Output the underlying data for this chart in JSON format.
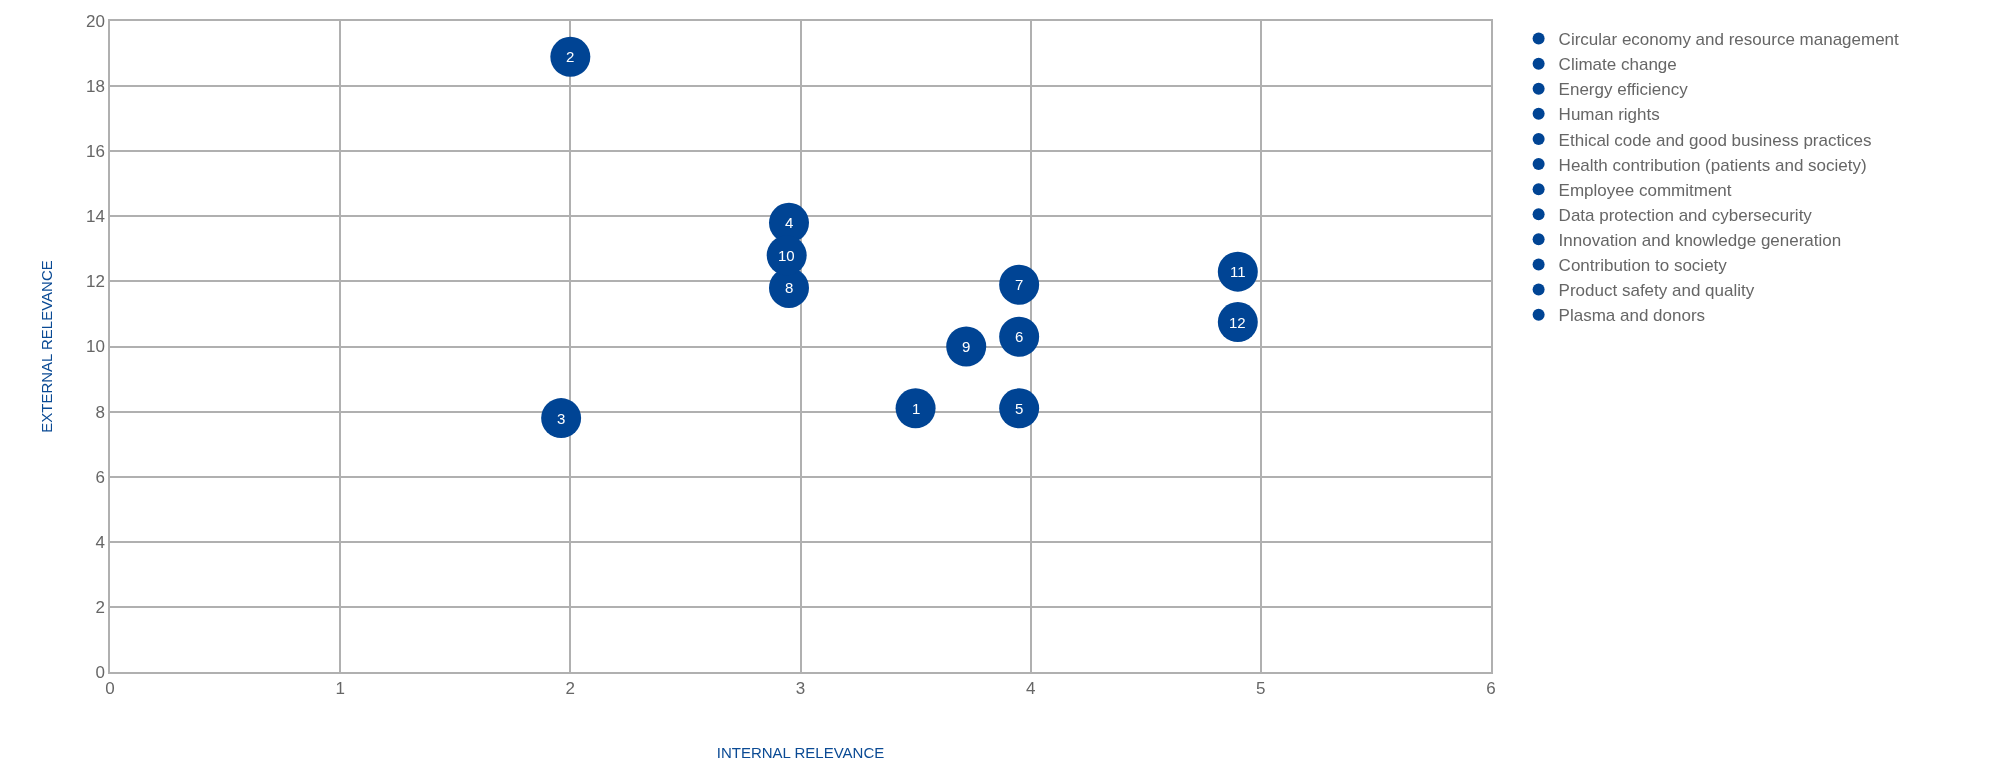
{
  "chart_data": {
    "type": "scatter",
    "xlabel": "INTERNAL RELEVANCE",
    "ylabel": "EXTERNAL RELEVANCE",
    "xlim": [
      0,
      6
    ],
    "xticks": [
      0,
      1,
      2,
      3,
      4,
      5,
      6
    ],
    "ylim": [
      0,
      20
    ],
    "yticks": [
      0,
      2,
      4,
      6,
      8,
      10,
      12,
      14,
      16,
      18,
      20
    ],
    "grid": true,
    "legend": "right",
    "marker": "circle",
    "series": [
      {
        "name": "Circular economy and resource management",
        "color": "#004494",
        "x": [
          3.5
        ],
        "values": [
          8.1
        ]
      },
      {
        "name": "Climate change",
        "color": "#004494",
        "x": [
          2.0
        ],
        "values": [
          18.9
        ]
      },
      {
        "name": "Energy efficiency",
        "color": "#004494",
        "x": [
          1.96
        ],
        "values": [
          7.8
        ]
      },
      {
        "name": "Human rights",
        "color": "#004494",
        "x": [
          2.95
        ],
        "values": [
          13.8
        ]
      },
      {
        "name": "Ethical code and good business practices",
        "color": "#004494",
        "x": [
          3.95
        ],
        "values": [
          8.1
        ]
      },
      {
        "name": "Health contribution (patients and society)",
        "color": "#004494",
        "x": [
          3.95
        ],
        "values": [
          10.3
        ]
      },
      {
        "name": "Employee commitment",
        "color": "#004494",
        "x": [
          3.95
        ],
        "values": [
          11.9
        ]
      },
      {
        "name": "Data protection and cybersecurity",
        "color": "#004494",
        "x": [
          2.95
        ],
        "values": [
          11.8
        ]
      },
      {
        "name": "Innovation and knowledge generation",
        "color": "#004494",
        "x": [
          3.72
        ],
        "values": [
          10.0
        ]
      },
      {
        "name": "Contribution to society",
        "color": "#004494",
        "x": [
          2.94
        ],
        "values": [
          12.8
        ]
      },
      {
        "name": "Product safety and quality",
        "color": "#004494",
        "x": [
          4.9
        ],
        "values": [
          12.3
        ]
      },
      {
        "name": "Plasma and donors",
        "color": "#004494",
        "x": [
          4.9
        ],
        "values": [
          10.75
        ]
      }
    ],
    "annotations": [
      {
        "text": "1",
        "x": 3.5,
        "y": 8.1
      },
      {
        "text": "2",
        "x": 2.0,
        "y": 18.9
      },
      {
        "text": "3",
        "x": 1.96,
        "y": 7.8
      },
      {
        "text": "4",
        "x": 2.95,
        "y": 13.8
      },
      {
        "text": "5",
        "x": 3.95,
        "y": 8.1
      },
      {
        "text": "6",
        "x": 3.95,
        "y": 10.3
      },
      {
        "text": "7",
        "x": 3.95,
        "y": 11.9
      },
      {
        "text": "8",
        "x": 2.95,
        "y": 11.8
      },
      {
        "text": "9",
        "x": 3.72,
        "y": 10.0
      },
      {
        "text": "10",
        "x": 2.94,
        "y": 12.8
      },
      {
        "text": "11",
        "x": 4.9,
        "y": 12.3
      },
      {
        "text": "12",
        "x": 4.9,
        "y": 10.75
      }
    ]
  }
}
